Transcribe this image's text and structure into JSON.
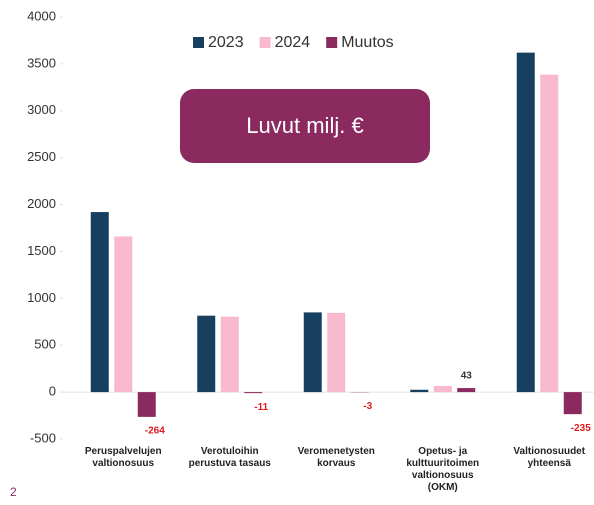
{
  "chart_data": {
    "type": "bar",
    "annotation": "Luvut milj. €",
    "page_number": "2",
    "categories": [
      "Peruspalvelujen\nvaltionosuus",
      "Verotuloihin\nperustuva tasaus",
      "Veromenetysten\nkorvaus",
      "Opetus- ja\nkulttuuritoimen\nvaltionosuus\n(OKM)",
      "Valtionosuudet\nyhteensä"
    ],
    "series": [
      {
        "name": "2023",
        "color": "#173f5f",
        "values": [
          1920,
          815,
          850,
          25,
          3620
        ]
      },
      {
        "name": "2024",
        "color": "#f8b9cd",
        "values": [
          1660,
          805,
          845,
          65,
          3385
        ]
      },
      {
        "name": "Muutos",
        "color": "#8b2a5e",
        "values": [
          -264,
          -11,
          -3,
          43,
          -235
        ]
      }
    ],
    "ylim": [
      -500,
      4000
    ],
    "yticks": [
      {
        "value": -500,
        "label": "-500"
      },
      0,
      500,
      1000,
      1500,
      2000,
      2500,
      3000,
      3500,
      4000
    ],
    "legend": "top",
    "grid": false
  }
}
